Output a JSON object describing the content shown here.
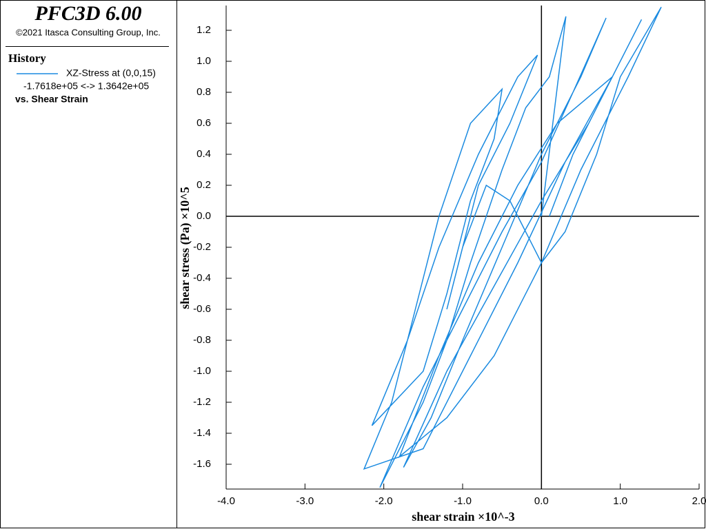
{
  "chart_data": {
    "type": "line",
    "title": "PFC3D 6.00",
    "subtitle": "©2021 Itasca Consulting Group, Inc.",
    "legend_title": "History",
    "series_range": "-1.7618e+05 <->  1.3642e+05",
    "x_caption": "vs. Shear Strain",
    "xlabel": "shear strain ×10^-3",
    "ylabel": "shear stress (Pa) ×10^5",
    "xlim": [
      -4,
      2
    ],
    "ylim": [
      -1.76,
      1.36
    ],
    "xticks": [
      {
        "value": -4,
        "label": "-4.0"
      },
      {
        "value": -3,
        "label": "-3.0"
      },
      {
        "value": -2,
        "label": "-2.0"
      },
      {
        "value": -1,
        "label": "-1.0"
      },
      {
        "value": 0,
        "label": "0.0"
      },
      {
        "value": 1,
        "label": "1.0"
      },
      {
        "value": 2,
        "label": "2.0"
      }
    ],
    "yticks": [
      -1.6,
      -1.4,
      -1.2,
      {
        "value": -1,
        "label": "-1.0"
      },
      -0.8,
      -0.6,
      -0.4,
      -0.2,
      {
        "value": 0,
        "label": "0.0"
      },
      0.2,
      0.4,
      0.6,
      0.8,
      {
        "value": 1,
        "label": "1.0"
      },
      1.2
    ],
    "x": [
      0,
      0.31,
      0.1,
      -0.2,
      -0.5,
      -0.9,
      -1.2,
      -1.5,
      -2.05,
      -1.5,
      -1.0,
      -0.5,
      0,
      0.4,
      0.82,
      0.5,
      0,
      -0.5,
      -1.0,
      -1.4,
      -1.75,
      -1.2,
      -0.6,
      0,
      0.6,
      1.27,
      0.9,
      0.3,
      -0.3,
      -0.9,
      -1.5,
      -2.25,
      -1.9,
      -1.6,
      -1.3,
      -0.9,
      -0.5,
      -0.6,
      -0.9,
      -1.2,
      -1.5,
      -2.15,
      -1.7,
      -1.3,
      -0.8,
      -0.3,
      -0.05,
      -0.4,
      -0.8,
      -1.1,
      -1.2,
      -1.0,
      -0.7,
      -0.4,
      0,
      0.3,
      0.7,
      1.0,
      1.52,
      1.1,
      0.5,
      0,
      -0.6,
      -1.2,
      -1.8,
      -1.3,
      -0.8,
      -0.3,
      0.2,
      0.9,
      0.4,
      0.1
    ],
    "series": [
      {
        "name": "XZ-Stress at (0,0,15)",
        "color": "#1a8ae0",
        "values": [
          0,
          1.29,
          0.9,
          0.7,
          0.3,
          -0.3,
          -0.8,
          -1.2,
          -1.75,
          -1.1,
          -0.6,
          -0.1,
          0.35,
          0.8,
          1.28,
          0.9,
          0.4,
          -0.2,
          -0.8,
          -1.3,
          -1.62,
          -1.0,
          -0.45,
          0.1,
          0.6,
          1.27,
          0.9,
          0.35,
          -0.3,
          -0.9,
          -1.5,
          -1.63,
          -1.2,
          -0.6,
          0.0,
          0.6,
          0.82,
          0.5,
          0.1,
          -0.5,
          -1.0,
          -1.35,
          -0.8,
          -0.2,
          0.4,
          0.9,
          1.04,
          0.6,
          0.2,
          -0.4,
          -0.6,
          -0.2,
          0.2,
          0.1,
          -0.3,
          -0.1,
          0.4,
          0.9,
          1.35,
          0.9,
          0.3,
          -0.3,
          -0.9,
          -1.3,
          -1.55,
          -0.9,
          -0.3,
          0.2,
          0.6,
          0.9,
          0.4,
          0
        ]
      }
    ]
  }
}
